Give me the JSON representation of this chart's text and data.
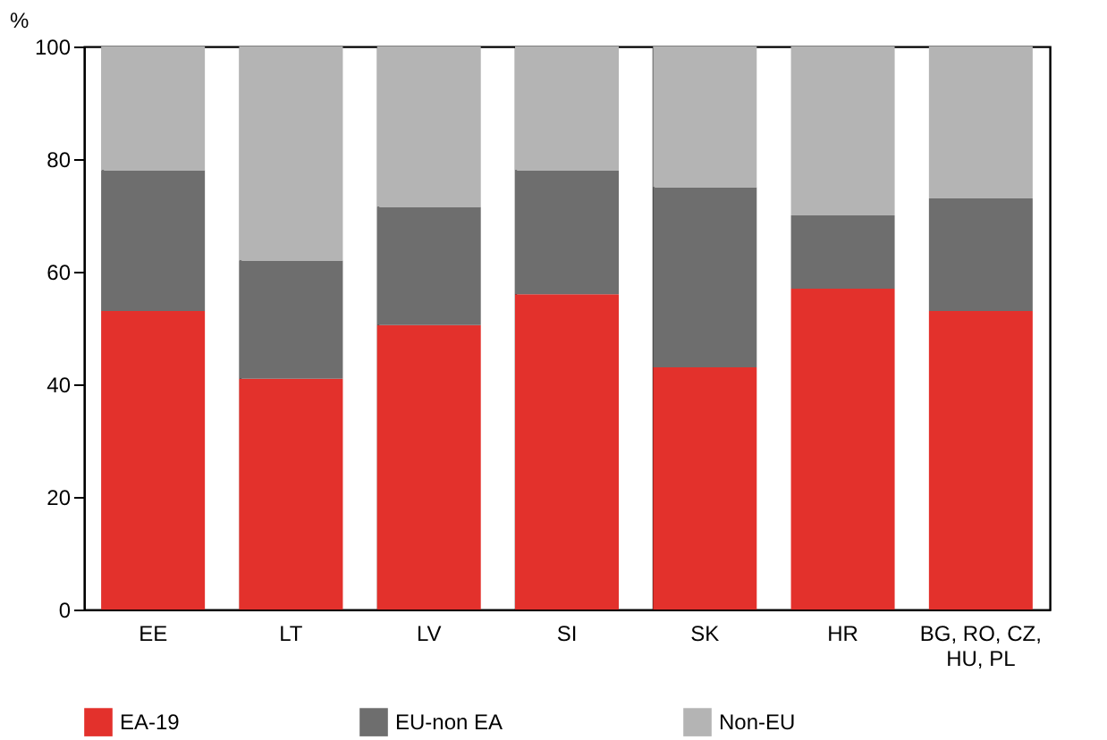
{
  "chart_data": {
    "type": "bar",
    "stacked": true,
    "ylabel": "%",
    "categories": [
      "EE",
      "LT",
      "LV",
      "SI",
      "SK",
      "HR",
      "BG, RO, CZ, HU, PL"
    ],
    "series": [
      {
        "name": "EA-19",
        "color": "#e3312c",
        "values": [
          53,
          41,
          50.5,
          56,
          43,
          57,
          53
        ]
      },
      {
        "name": "EU-non EA",
        "color": "#6e6e6e",
        "values": [
          25,
          21,
          21,
          22,
          32,
          13,
          20
        ]
      },
      {
        "name": "Non-EU",
        "color": "#b4b4b4",
        "values": [
          22,
          38,
          28.5,
          22,
          25,
          30,
          27
        ]
      }
    ],
    "ylim": [
      0,
      100
    ],
    "yticks": [
      0,
      20,
      40,
      60,
      80,
      100
    ],
    "grid": "x",
    "legend": "bottom"
  }
}
